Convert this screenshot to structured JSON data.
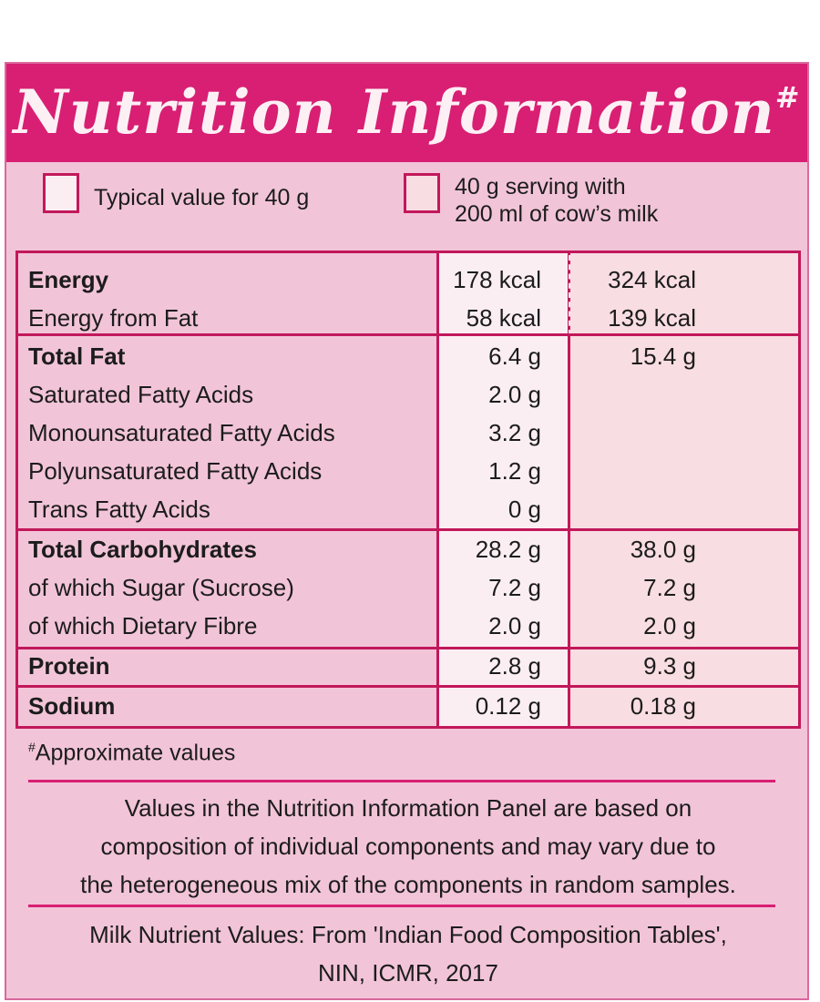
{
  "header": {
    "title": "Nutrition Information",
    "mark": "#"
  },
  "legend": [
    {
      "text": "Typical value for 40 g"
    },
    {
      "text_line1": "40 g serving with",
      "text_line2": "200 ml of cow’s milk"
    }
  ],
  "rows": [
    {
      "label": "Energy",
      "bold": true,
      "v1": "178 kcal",
      "v2": "324 kcal"
    },
    {
      "label": "Energy from Fat",
      "bold": false,
      "v1": "58 kcal",
      "v2": "139 kcal"
    },
    {
      "label": "Total Fat",
      "bold": true,
      "v1": "6.4 g",
      "v2": "15.4 g"
    },
    {
      "label": "Saturated Fatty Acids",
      "bold": false,
      "v1": "2.0 g",
      "v2": ""
    },
    {
      "label": "Monounsaturated Fatty Acids",
      "bold": false,
      "v1": "3.2 g",
      "v2": ""
    },
    {
      "label": "Polyunsaturated Fatty Acids",
      "bold": false,
      "v1": "1.2 g",
      "v2": ""
    },
    {
      "label": "Trans Fatty Acids",
      "bold": false,
      "v1": "0 g",
      "v2": ""
    },
    {
      "label": "Total Carbohydrates",
      "bold": true,
      "v1": "28.2 g",
      "v2": "38.0 g"
    },
    {
      "label": "of which Sugar (Sucrose)",
      "bold": false,
      "v1": "7.2 g",
      "v2": "7.2 g"
    },
    {
      "label": "of which Dietary Fibre",
      "bold": false,
      "v1": "2.0 g",
      "v2": "2.0 g"
    },
    {
      "label": "Protein",
      "bold": true,
      "v1": "2.8 g",
      "v2": "9.3 g"
    },
    {
      "label": "Sodium",
      "bold": true,
      "v1": "0.12 g",
      "v2": "0.18 g"
    }
  ],
  "footnote": {
    "mark": "#",
    "text": "Approximate values"
  },
  "disclaimer": {
    "line1": "Values in the Nutrition Information Panel are based on",
    "line2": "composition of individual components and may vary due to",
    "line3": "the heterogeneous mix of the components in random samples."
  },
  "source": {
    "line1": "Milk Nutrient Values: From 'Indian Food Composition Tables',",
    "line2": "NIN, ICMR, 2017"
  },
  "colors": {
    "accent": "#d81f73",
    "panel": "#f2c4d8",
    "col1": "#fbeef3",
    "col2": "#f8dde2"
  }
}
